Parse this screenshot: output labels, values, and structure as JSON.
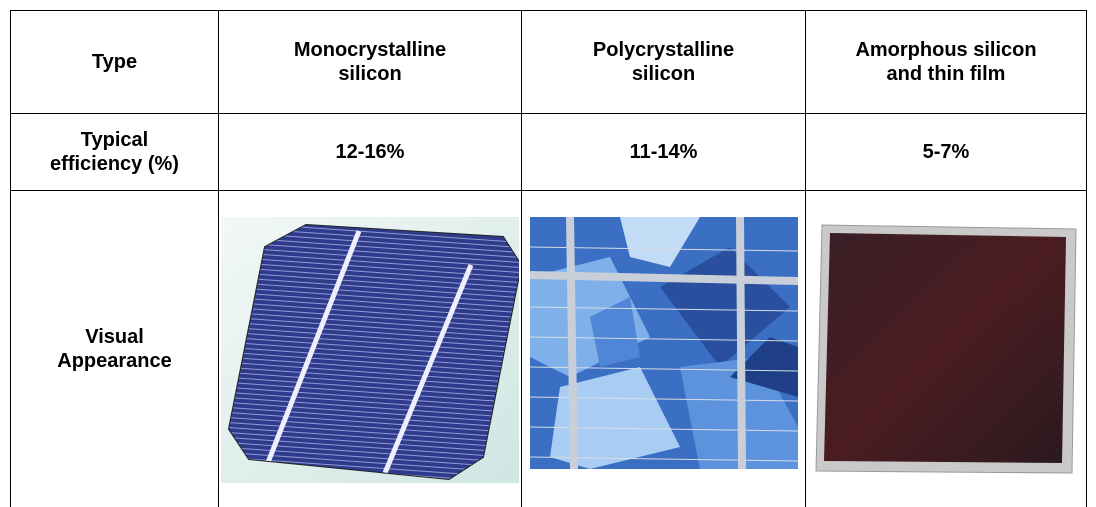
{
  "table": {
    "header": [
      "Type",
      "Monocrystalline\nsilicon",
      "Polycrystalline\nsilicon",
      "Amorphous silicon\nand thin film"
    ],
    "rows": [
      [
        "Typical\nefficiency (%)",
        "12-16%",
        "11-14%",
        "5-7%"
      ],
      [
        "Visual\nAppearance"
      ]
    ]
  }
}
